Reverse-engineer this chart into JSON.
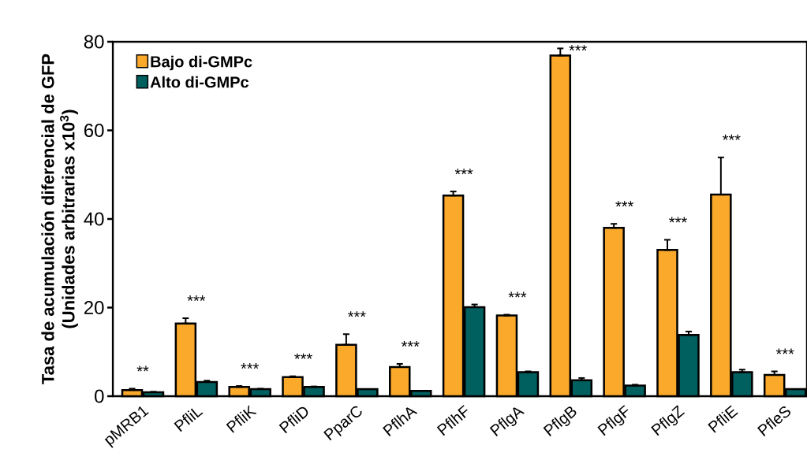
{
  "chart_data": {
    "type": "bar",
    "ylabel": [
      "Tasa de acumulación diferencial de GFP",
      "(Unidades arbitrarias x10$^{3}$)"
    ],
    "categories": [
      "pMRB1",
      "PfliL",
      "PfliK",
      "PfliD",
      "PparC",
      "PflhA",
      "PflhF",
      "PflgA",
      "PflgB",
      "PflgF",
      "PflgZ",
      "PfliE",
      "PfleS"
    ],
    "series": [
      {
        "name": "Bajo di-GMPc",
        "color": "#fba92b",
        "values": [
          1.4,
          16.4,
          2.1,
          4.3,
          11.6,
          6.6,
          45.3,
          18.2,
          76.9,
          38.0,
          33.0,
          45.5,
          4.8
        ],
        "errors": [
          [
            1.4,
            1.7
          ],
          [
            16.4,
            17.6
          ],
          [
            2.1,
            2.3
          ],
          [
            4.3,
            4.5
          ],
          [
            11.6,
            14.0
          ],
          [
            6.6,
            7.3
          ],
          [
            45.3,
            46.2
          ],
          [
            18.2,
            18.4
          ],
          [
            76.9,
            78.5
          ],
          [
            38.0,
            38.9
          ],
          [
            33.0,
            35.3
          ],
          [
            45.5,
            53.9
          ],
          [
            4.8,
            5.6
          ]
        ]
      },
      {
        "name": "Alto di-GMPc",
        "color": "#005f5f",
        "values": [
          0.9,
          3.2,
          1.6,
          2.1,
          1.6,
          1.2,
          20.1,
          5.4,
          3.6,
          2.4,
          13.8,
          5.4,
          1.6
        ],
        "errors": [
          [
            0.9,
            1.0
          ],
          [
            3.2,
            3.5
          ],
          [
            1.6,
            1.7
          ],
          [
            2.1,
            2.2
          ],
          null,
          null,
          [
            20.1,
            20.7
          ],
          [
            5.4,
            5.6
          ],
          [
            3.6,
            4.1
          ],
          [
            2.4,
            2.6
          ],
          [
            13.8,
            14.6
          ],
          [
            5.4,
            6.0
          ],
          null
        ]
      }
    ],
    "ylim": [
      0,
      80
    ],
    "yticks": [
      0,
      20,
      40,
      60,
      80
    ],
    "grid": false,
    "legend": "top left",
    "annotations": [
      "**",
      "***",
      "***",
      "***",
      "***",
      "***",
      "***",
      "***",
      "***",
      "***",
      "***",
      "***",
      "***"
    ]
  }
}
